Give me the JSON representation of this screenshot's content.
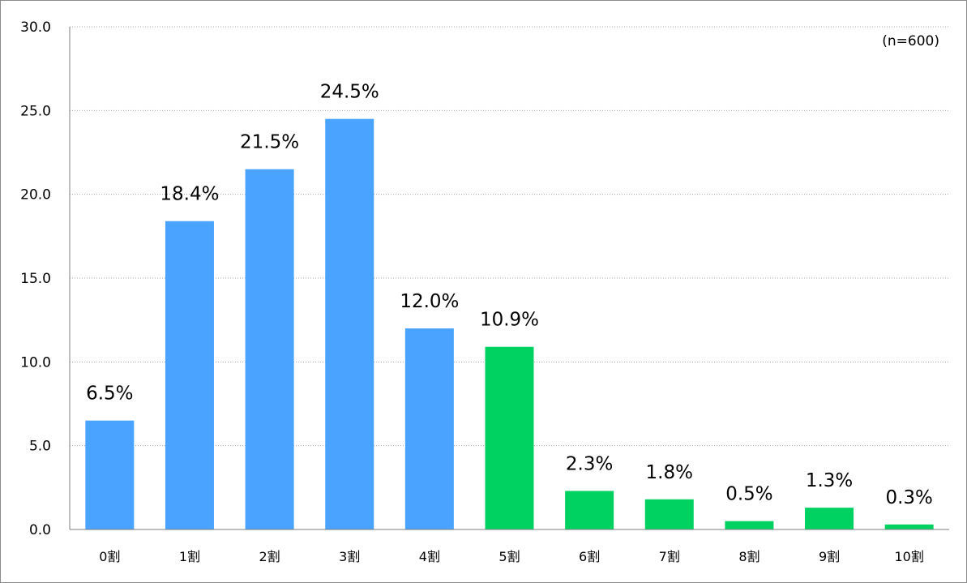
{
  "chart_data": {
    "type": "bar",
    "title": "",
    "xlabel": "",
    "ylabel": "",
    "note": "(n=600)",
    "categories": [
      "0割",
      "1割",
      "2割",
      "3割",
      "4割",
      "5割",
      "6割",
      "7割",
      "8割",
      "9割",
      "10割"
    ],
    "values": [
      6.5,
      18.4,
      21.5,
      24.5,
      12.0,
      10.9,
      2.3,
      1.8,
      0.5,
      1.3,
      0.3
    ],
    "data_labels": [
      "6.5%",
      "18.4%",
      "21.5%",
      "24.5%",
      "12.0%",
      "10.9%",
      "2.3%",
      "1.8%",
      "0.5%",
      "1.3%",
      "0.3%"
    ],
    "y_ticks": [
      "0.0",
      "5.0",
      "10.0",
      "15.0",
      "20.0",
      "25.0",
      "30.0"
    ],
    "ylim": [
      0,
      30
    ],
    "grid": true,
    "legend": "none",
    "colors": {
      "low": "#4aa3ff",
      "high": "#00d262",
      "grid": "#a6a6a6",
      "axis": "#7f7f7f"
    },
    "bar_color_groups": [
      "low",
      "low",
      "low",
      "low",
      "low",
      "high",
      "high",
      "high",
      "high",
      "high",
      "high"
    ]
  }
}
